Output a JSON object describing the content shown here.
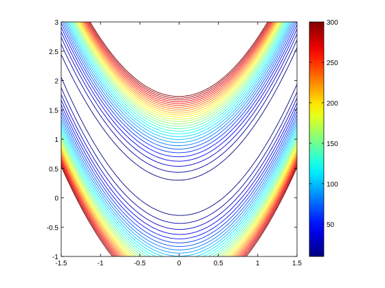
{
  "chart_data": {
    "type": "contour",
    "function": "z = 100*(y - x^2)^2 + (1 - x)^2",
    "xlim": [
      -1.5,
      1.5
    ],
    "ylim": [
      -1,
      3
    ],
    "x_ticks": [
      "-1.5",
      "-1",
      "-0.5",
      "0",
      "0.5",
      "1",
      "1.5"
    ],
    "y_ticks": [
      "-1",
      "-0.5",
      "0",
      "0.5",
      "1",
      "1.5",
      "2",
      "2.5",
      "3"
    ],
    "contour_levels": [
      10,
      20,
      30,
      40,
      50,
      60,
      70,
      80,
      90,
      100,
      110,
      120,
      130,
      140,
      150,
      160,
      170,
      180,
      190,
      200,
      210,
      220,
      230,
      240,
      250,
      260,
      270,
      280,
      290,
      300
    ],
    "colorbar": {
      "range": [
        10,
        300
      ],
      "ticks": [
        "50",
        "100",
        "150",
        "200",
        "250",
        "300"
      ],
      "colormap": [
        "#00008f",
        "#0000ff",
        "#00ffff",
        "#ffff00",
        "#ff0000",
        "#800000"
      ]
    },
    "title": "",
    "xlabel": "",
    "ylabel": ""
  }
}
